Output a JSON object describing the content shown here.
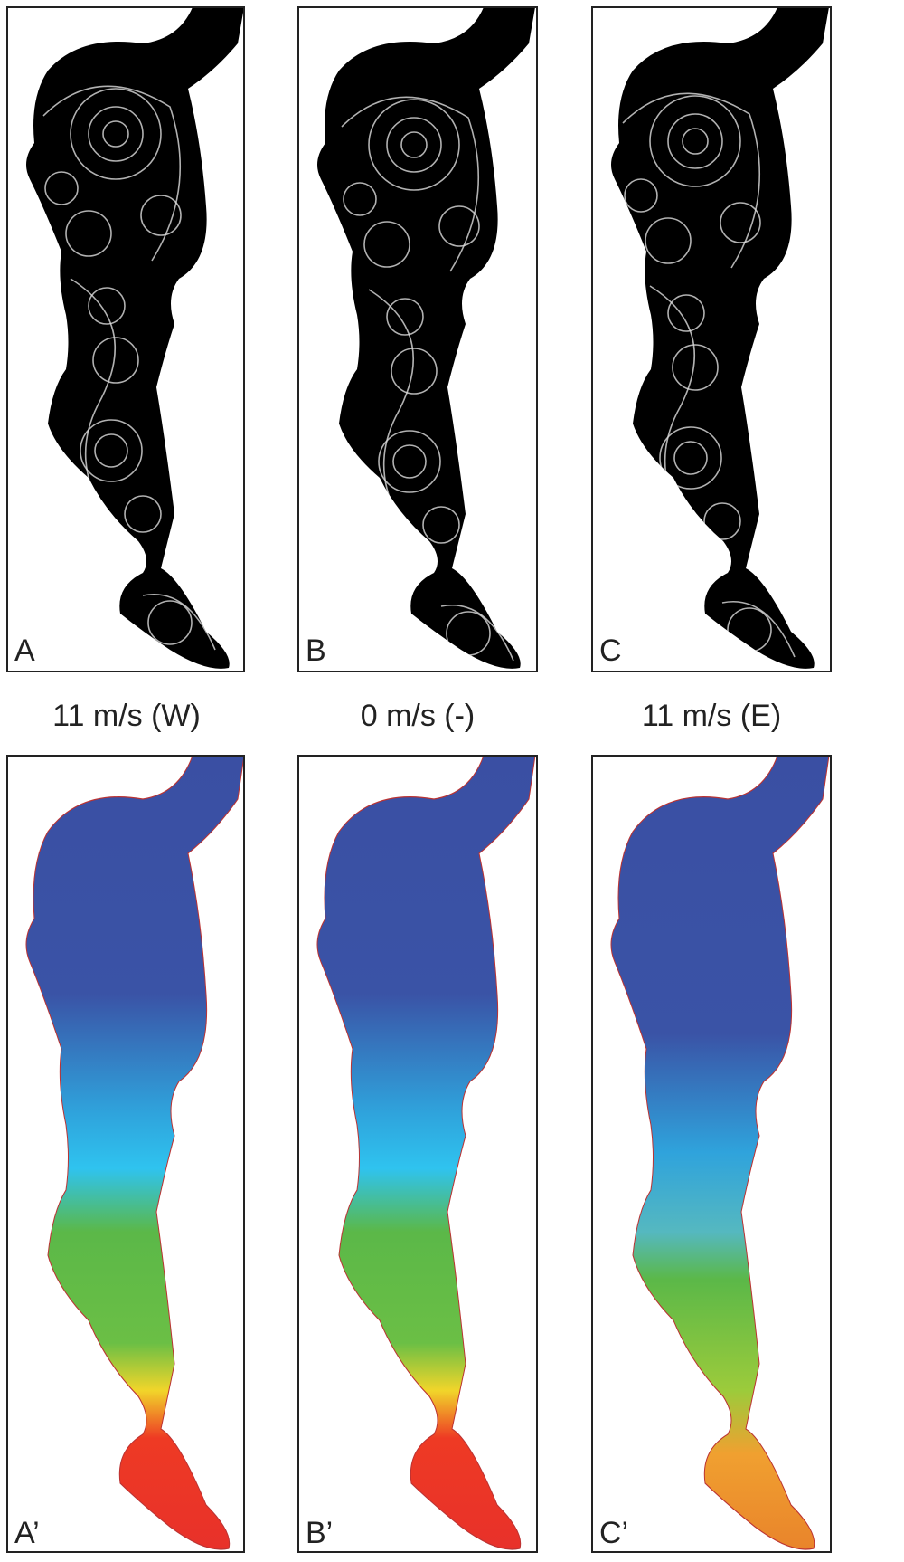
{
  "top_panels": [
    {
      "label": "A"
    },
    {
      "label": "B"
    },
    {
      "label": "C"
    }
  ],
  "wind_labels": [
    "11 m/s (W)",
    "0 m/s (-)",
    "11 m/s (E)"
  ],
  "bottom_panels": [
    {
      "label": "A’"
    },
    {
      "label": "B’"
    },
    {
      "label": "C’"
    }
  ]
}
